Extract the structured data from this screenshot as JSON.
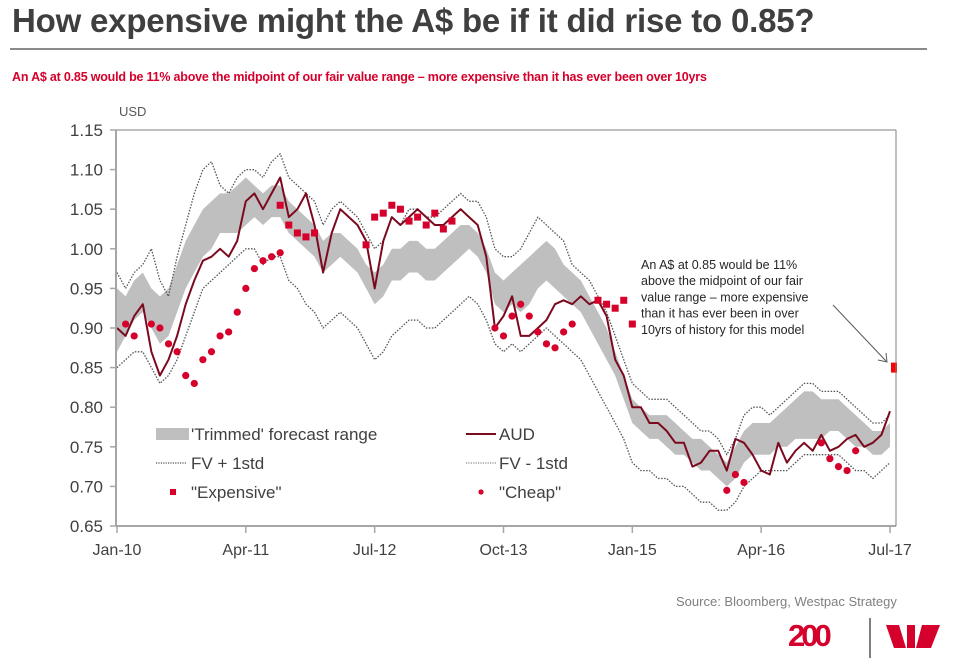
{
  "header": {
    "title": "How expensive might the A$ be if it did rise to 0.85?",
    "subtitle": "An A$ at 0.85 would be 11% above the midpoint  of our fair value  range – more expensive  than it has ever been over 10yrs"
  },
  "footer": {
    "source": "Source:  Bloomberg, Westpac Strategy",
    "logo_text": "200",
    "brand_color": "#d5002b"
  },
  "chart_data": {
    "type": "line",
    "title": "How expensive might the A$ be if it did rise to 0.85?",
    "ylabel": "USD",
    "xlabel": "",
    "ylim": [
      0.65,
      1.15
    ],
    "yticks": [
      "1.15",
      "1.10",
      "1.05",
      "1.00",
      "0.95",
      "0.90",
      "0.85",
      "0.80",
      "0.75",
      "0.70",
      "0.65"
    ],
    "ytick_values": [
      1.15,
      1.1,
      1.05,
      1.0,
      0.95,
      0.9,
      0.85,
      0.8,
      0.75,
      0.7,
      0.65
    ],
    "xticks": [
      "Jan-10",
      "Apr-11",
      "Jul-12",
      "Oct-13",
      "Jan-15",
      "Apr-16",
      "Jul-17"
    ],
    "xtick_month_index": [
      0,
      15,
      30,
      45,
      60,
      75,
      90
    ],
    "x_start": "Jan-10",
    "x_end": "Jul-17",
    "x_frequency": "monthly",
    "grid": false,
    "legend": {
      "placement": "bottom-left",
      "entries": [
        {
          "key": "band",
          "label": "'Trimmed' forecast range"
        },
        {
          "key": "aud",
          "label": "AUD"
        },
        {
          "key": "fv_plus",
          "label": "FV + 1std"
        },
        {
          "key": "fv_minus",
          "label": "FV - 1std"
        },
        {
          "key": "expensive",
          "label": "\"Expensive\""
        },
        {
          "key": "cheap",
          "label": "\"Cheap\""
        }
      ]
    },
    "colors": {
      "aud": "#7b0a1e",
      "band": "#bfbfbf",
      "fv_plus": "#555555",
      "fv_minus": "#8c8c8c",
      "marker": "#d5002b",
      "target": "#ff0000",
      "axis": "#a6a6a6",
      "text": "#595959"
    },
    "series": [
      {
        "name": "AUD",
        "key": "aud",
        "values": [
          0.9,
          0.89,
          0.915,
          0.93,
          0.87,
          0.84,
          0.86,
          0.89,
          0.93,
          0.96,
          0.985,
          0.99,
          1.0,
          0.99,
          1.01,
          1.06,
          1.07,
          1.05,
          1.07,
          1.09,
          1.04,
          1.05,
          1.07,
          1.03,
          0.97,
          1.02,
          1.05,
          1.04,
          1.03,
          1.01,
          0.95,
          1.01,
          1.04,
          1.03,
          1.04,
          1.05,
          1.04,
          1.03,
          1.03,
          1.04,
          1.05,
          1.04,
          1.03,
          0.99,
          0.9,
          0.915,
          0.94,
          0.89,
          0.89,
          0.9,
          0.91,
          0.93,
          0.935,
          0.93,
          0.94,
          0.93,
          0.935,
          0.915,
          0.86,
          0.84,
          0.8,
          0.8,
          0.78,
          0.78,
          0.77,
          0.755,
          0.755,
          0.725,
          0.73,
          0.745,
          0.745,
          0.72,
          0.76,
          0.755,
          0.74,
          0.72,
          0.715,
          0.755,
          0.73,
          0.745,
          0.755,
          0.745,
          0.765,
          0.745,
          0.75,
          0.76,
          0.765,
          0.75,
          0.755,
          0.765,
          0.795
        ]
      },
      {
        "name": "Trimmed forecast range (low)",
        "key": "band_low",
        "values": [
          0.87,
          0.89,
          0.91,
          0.92,
          0.9,
          0.88,
          0.89,
          0.92,
          0.95,
          0.97,
          0.99,
          1.0,
          1.02,
          1.02,
          1.02,
          1.03,
          1.04,
          1.03,
          1.04,
          1.04,
          1.02,
          1.01,
          1.0,
          0.99,
          0.97,
          0.98,
          0.99,
          0.98,
          0.97,
          0.95,
          0.93,
          0.94,
          0.96,
          0.96,
          0.97,
          0.97,
          0.96,
          0.96,
          0.97,
          0.98,
          0.99,
          1.0,
          0.99,
          0.97,
          0.93,
          0.92,
          0.93,
          0.92,
          0.93,
          0.95,
          0.96,
          0.95,
          0.94,
          0.93,
          0.92,
          0.9,
          0.88,
          0.86,
          0.84,
          0.81,
          0.78,
          0.77,
          0.76,
          0.76,
          0.75,
          0.74,
          0.74,
          0.73,
          0.72,
          0.72,
          0.71,
          0.7,
          0.71,
          0.73,
          0.74,
          0.74,
          0.74,
          0.75,
          0.75,
          0.76,
          0.76,
          0.76,
          0.76,
          0.77,
          0.77,
          0.76,
          0.75,
          0.75,
          0.74,
          0.74,
          0.75
        ]
      },
      {
        "name": "Trimmed forecast range (high)",
        "key": "band_high",
        "values": [
          0.95,
          0.94,
          0.96,
          0.97,
          0.95,
          0.94,
          0.95,
          0.98,
          1.01,
          1.03,
          1.05,
          1.06,
          1.07,
          1.07,
          1.08,
          1.09,
          1.08,
          1.07,
          1.08,
          1.08,
          1.06,
          1.05,
          1.04,
          1.03,
          1.01,
          1.02,
          1.02,
          1.01,
          1.0,
          0.98,
          0.97,
          0.98,
          1.0,
          1.0,
          1.01,
          1.01,
          1.0,
          1.0,
          1.01,
          1.02,
          1.03,
          1.03,
          1.02,
          1.0,
          0.97,
          0.96,
          0.97,
          0.98,
          0.99,
          1.0,
          1.01,
          1.0,
          0.98,
          0.97,
          0.96,
          0.94,
          0.92,
          0.9,
          0.87,
          0.84,
          0.81,
          0.8,
          0.79,
          0.79,
          0.79,
          0.78,
          0.77,
          0.76,
          0.76,
          0.75,
          0.74,
          0.73,
          0.75,
          0.77,
          0.78,
          0.78,
          0.78,
          0.79,
          0.8,
          0.81,
          0.82,
          0.82,
          0.81,
          0.81,
          0.81,
          0.8,
          0.79,
          0.78,
          0.77,
          0.77,
          0.78
        ]
      },
      {
        "name": "FV + 1std",
        "key": "fv_plus",
        "values": [
          0.97,
          0.95,
          0.97,
          0.98,
          1.0,
          0.96,
          0.94,
          0.99,
          1.03,
          1.07,
          1.1,
          1.11,
          1.08,
          1.07,
          1.09,
          1.1,
          1.1,
          1.09,
          1.11,
          1.12,
          1.09,
          1.08,
          1.07,
          1.06,
          1.03,
          1.05,
          1.06,
          1.05,
          1.04,
          1.02,
          1.0,
          1.01,
          1.04,
          1.03,
          1.05,
          1.05,
          1.04,
          1.04,
          1.05,
          1.06,
          1.07,
          1.06,
          1.06,
          1.04,
          1.0,
          0.99,
          0.99,
          1.0,
          1.02,
          1.04,
          1.03,
          1.02,
          1.01,
          0.98,
          0.97,
          0.96,
          0.94,
          0.92,
          0.89,
          0.86,
          0.83,
          0.82,
          0.81,
          0.81,
          0.81,
          0.8,
          0.79,
          0.78,
          0.77,
          0.77,
          0.76,
          0.74,
          0.76,
          0.79,
          0.8,
          0.8,
          0.79,
          0.8,
          0.81,
          0.82,
          0.83,
          0.83,
          0.82,
          0.82,
          0.82,
          0.81,
          0.8,
          0.79,
          0.78,
          0.78,
          0.79
        ]
      },
      {
        "name": "FV - 1std",
        "key": "fv_minus",
        "values": [
          0.85,
          0.86,
          0.87,
          0.87,
          0.85,
          0.83,
          0.84,
          0.86,
          0.89,
          0.92,
          0.95,
          0.96,
          0.97,
          0.98,
          0.99,
          1.0,
          1.0,
          0.98,
          0.99,
          0.99,
          0.96,
          0.95,
          0.93,
          0.92,
          0.9,
          0.91,
          0.92,
          0.91,
          0.9,
          0.88,
          0.86,
          0.87,
          0.89,
          0.9,
          0.91,
          0.91,
          0.9,
          0.9,
          0.91,
          0.92,
          0.93,
          0.94,
          0.93,
          0.91,
          0.88,
          0.87,
          0.88,
          0.87,
          0.88,
          0.89,
          0.9,
          0.89,
          0.88,
          0.87,
          0.86,
          0.84,
          0.82,
          0.8,
          0.78,
          0.76,
          0.73,
          0.72,
          0.72,
          0.71,
          0.71,
          0.7,
          0.7,
          0.69,
          0.68,
          0.68,
          0.67,
          0.67,
          0.68,
          0.7,
          0.71,
          0.72,
          0.72,
          0.72,
          0.72,
          0.73,
          0.74,
          0.74,
          0.74,
          0.74,
          0.74,
          0.73,
          0.72,
          0.72,
          0.71,
          0.72,
          0.73
        ]
      }
    ],
    "expensive_markers": [
      {
        "month": 19,
        "value": 1.055
      },
      {
        "month": 20,
        "value": 1.03
      },
      {
        "month": 21,
        "value": 1.02
      },
      {
        "month": 22,
        "value": 1.015
      },
      {
        "month": 23,
        "value": 1.02
      },
      {
        "month": 29,
        "value": 1.005
      },
      {
        "month": 30,
        "value": 1.04
      },
      {
        "month": 31,
        "value": 1.045
      },
      {
        "month": 32,
        "value": 1.055
      },
      {
        "month": 33,
        "value": 1.05
      },
      {
        "month": 34,
        "value": 1.035
      },
      {
        "month": 35,
        "value": 1.04
      },
      {
        "month": 36,
        "value": 1.03
      },
      {
        "month": 37,
        "value": 1.045
      },
      {
        "month": 38,
        "value": 1.025
      },
      {
        "month": 39,
        "value": 1.035
      },
      {
        "month": 56,
        "value": 0.935
      },
      {
        "month": 57,
        "value": 0.93
      },
      {
        "month": 58,
        "value": 0.925
      },
      {
        "month": 59,
        "value": 0.935
      },
      {
        "month": 60,
        "value": 0.905
      }
    ],
    "cheap_markers": [
      {
        "month": 1,
        "value": 0.905
      },
      {
        "month": 2,
        "value": 0.89
      },
      {
        "month": 4,
        "value": 0.905
      },
      {
        "month": 5,
        "value": 0.9
      },
      {
        "month": 6,
        "value": 0.88
      },
      {
        "month": 7,
        "value": 0.87
      },
      {
        "month": 8,
        "value": 0.84
      },
      {
        "month": 9,
        "value": 0.83
      },
      {
        "month": 10,
        "value": 0.86
      },
      {
        "month": 11,
        "value": 0.87
      },
      {
        "month": 12,
        "value": 0.89
      },
      {
        "month": 13,
        "value": 0.895
      },
      {
        "month": 14,
        "value": 0.92
      },
      {
        "month": 15,
        "value": 0.95
      },
      {
        "month": 16,
        "value": 0.975
      },
      {
        "month": 17,
        "value": 0.985
      },
      {
        "month": 18,
        "value": 0.99
      },
      {
        "month": 19,
        "value": 0.995
      },
      {
        "month": 44,
        "value": 0.9
      },
      {
        "month": 45,
        "value": 0.89
      },
      {
        "month": 46,
        "value": 0.915
      },
      {
        "month": 47,
        "value": 0.93
      },
      {
        "month": 48,
        "value": 0.915
      },
      {
        "month": 49,
        "value": 0.895
      },
      {
        "month": 50,
        "value": 0.88
      },
      {
        "month": 51,
        "value": 0.875
      },
      {
        "month": 52,
        "value": 0.895
      },
      {
        "month": 53,
        "value": 0.905
      },
      {
        "month": 71,
        "value": 0.695
      },
      {
        "month": 72,
        "value": 0.715
      },
      {
        "month": 73,
        "value": 0.705
      },
      {
        "month": 82,
        "value": 0.755
      },
      {
        "month": 83,
        "value": 0.735
      },
      {
        "month": 84,
        "value": 0.725
      },
      {
        "month": 85,
        "value": 0.72
      },
      {
        "month": 86,
        "value": 0.745
      }
    ],
    "target_point": {
      "label": "A$ at 0.85",
      "month": 90,
      "value": 0.85
    },
    "annotation": {
      "lines": [
        "An A$ at 0.85 would be 11%",
        "above the midpoint of our fair",
        "value range – more expensive",
        "than it has ever been in over",
        "10yrs of history for this model"
      ],
      "points_to": "target_point"
    }
  }
}
